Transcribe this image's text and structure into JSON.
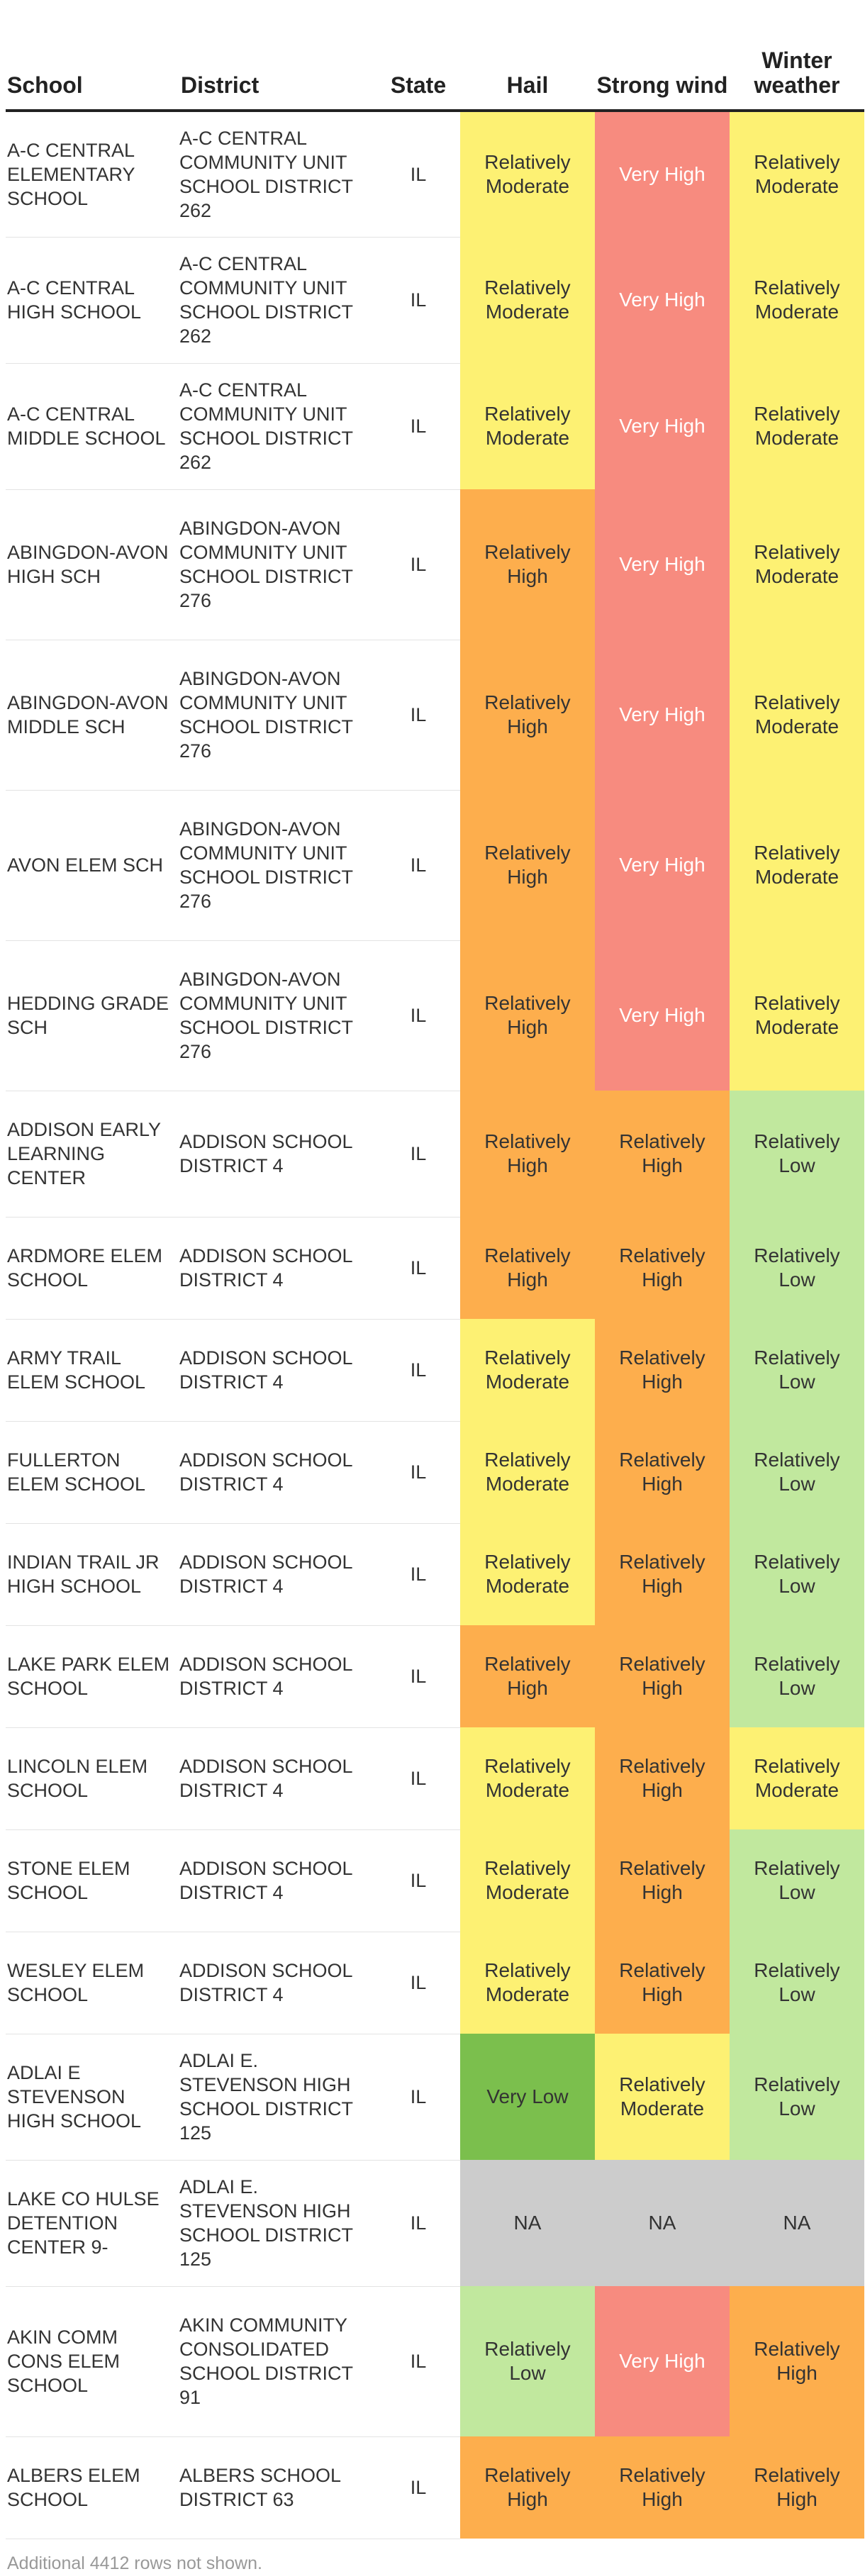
{
  "columns": {
    "school": "School",
    "district": "District",
    "state": "State",
    "hail": "Hail",
    "strong_wind": "Strong wind",
    "winter_weather": "Winter weather"
  },
  "rating_colors": {
    "Very Low": "#7bbf4d",
    "Relatively Low": "#c1e89e",
    "Relatively Moderate": "#fdf173",
    "Relatively High": "#fdae4d",
    "Very High": "#f78b7f",
    "NA": "#cccccc"
  },
  "rows": [
    {
      "school": "A-C CENTRAL ELEMENTARY SCHOOL",
      "district": "A-C CENTRAL COMMUNITY UNIT SCHOOL DISTRICT 262",
      "state": "IL",
      "hail": "Relatively Moderate",
      "wind": "Very High",
      "winter": "Relatively Moderate"
    },
    {
      "school": "A-C CENTRAL HIGH SCHOOL",
      "district": "A-C CENTRAL COMMUNITY UNIT SCHOOL DISTRICT 262",
      "state": "IL",
      "hail": "Relatively Moderate",
      "wind": "Very High",
      "winter": "Relatively Moderate"
    },
    {
      "school": "A-C CENTRAL MIDDLE SCHOOL",
      "district": "A-C CENTRAL COMMUNITY UNIT SCHOOL DISTRICT 262",
      "state": "IL",
      "hail": "Relatively Moderate",
      "wind": "Very High",
      "winter": "Relatively Moderate"
    },
    {
      "school": "ABINGDON-AVON HIGH SCH",
      "district": "ABINGDON-AVON COMMUNITY UNIT SCHOOL DISTRICT 276",
      "state": "IL",
      "hail": "Relatively High",
      "wind": "Very High",
      "winter": "Relatively Moderate"
    },
    {
      "school": "ABINGDON-AVON MIDDLE SCH",
      "district": "ABINGDON-AVON COMMUNITY UNIT SCHOOL DISTRICT 276",
      "state": "IL",
      "hail": "Relatively High",
      "wind": "Very High",
      "winter": "Relatively Moderate"
    },
    {
      "school": "AVON ELEM SCH",
      "district": "ABINGDON-AVON COMMUNITY UNIT SCHOOL DISTRICT 276",
      "state": "IL",
      "hail": "Relatively High",
      "wind": "Very High",
      "winter": "Relatively Moderate"
    },
    {
      "school": "HEDDING GRADE SCH",
      "district": "ABINGDON-AVON COMMUNITY UNIT SCHOOL DISTRICT 276",
      "state": "IL",
      "hail": "Relatively High",
      "wind": "Very High",
      "winter": "Relatively Moderate"
    },
    {
      "school": "ADDISON EARLY LEARNING CENTER",
      "district": "ADDISON SCHOOL DISTRICT 4",
      "state": "IL",
      "hail": "Relatively High",
      "wind": "Relatively High",
      "winter": "Relatively Low"
    },
    {
      "school": "ARDMORE ELEM SCHOOL",
      "district": "ADDISON SCHOOL DISTRICT 4",
      "state": "IL",
      "hail": "Relatively High",
      "wind": "Relatively High",
      "winter": "Relatively Low"
    },
    {
      "school": "ARMY TRAIL ELEM SCHOOL",
      "district": "ADDISON SCHOOL DISTRICT 4",
      "state": "IL",
      "hail": "Relatively Moderate",
      "wind": "Relatively High",
      "winter": "Relatively Low"
    },
    {
      "school": "FULLERTON ELEM SCHOOL",
      "district": "ADDISON SCHOOL DISTRICT 4",
      "state": "IL",
      "hail": "Relatively Moderate",
      "wind": "Relatively High",
      "winter": "Relatively Low"
    },
    {
      "school": "INDIAN TRAIL JR HIGH SCHOOL",
      "district": "ADDISON SCHOOL DISTRICT 4",
      "state": "IL",
      "hail": "Relatively Moderate",
      "wind": "Relatively High",
      "winter": "Relatively Low"
    },
    {
      "school": "LAKE PARK ELEM SCHOOL",
      "district": "ADDISON SCHOOL DISTRICT 4",
      "state": "IL",
      "hail": "Relatively High",
      "wind": "Relatively High",
      "winter": "Relatively Low"
    },
    {
      "school": "LINCOLN ELEM SCHOOL",
      "district": "ADDISON SCHOOL DISTRICT 4",
      "state": "IL",
      "hail": "Relatively Moderate",
      "wind": "Relatively High",
      "winter": "Relatively Moderate"
    },
    {
      "school": "STONE ELEM SCHOOL",
      "district": "ADDISON SCHOOL DISTRICT 4",
      "state": "IL",
      "hail": "Relatively Moderate",
      "wind": "Relatively High",
      "winter": "Relatively Low"
    },
    {
      "school": "WESLEY ELEM SCHOOL",
      "district": "ADDISON SCHOOL DISTRICT 4",
      "state": "IL",
      "hail": "Relatively Moderate",
      "wind": "Relatively High",
      "winter": "Relatively Low"
    },
    {
      "school": "ADLAI E STEVENSON HIGH SCHOOL",
      "district": "ADLAI E. STEVENSON HIGH SCHOOL DISTRICT 125",
      "state": "IL",
      "hail": "Very Low",
      "wind": "Relatively Moderate",
      "winter": "Relatively Low"
    },
    {
      "school": "LAKE CO HULSE DETENTION CENTER 9-",
      "district": "ADLAI E. STEVENSON HIGH SCHOOL DISTRICT 125",
      "state": "IL",
      "hail": "NA",
      "wind": "NA",
      "winter": "NA"
    },
    {
      "school": "AKIN COMM CONS ELEM SCHOOL",
      "district": "AKIN COMMUNITY CONSOLIDATED SCHOOL DISTRICT 91",
      "state": "IL",
      "hail": "Relatively Low",
      "wind": "Very High",
      "winter": "Relatively High"
    },
    {
      "school": "ALBERS ELEM SCHOOL",
      "district": "ALBERS SCHOOL DISTRICT 63",
      "state": "IL",
      "hail": "Relatively High",
      "wind": "Relatively High",
      "winter": "Relatively High"
    }
  ],
  "footer": "Additional 4412 rows not shown."
}
